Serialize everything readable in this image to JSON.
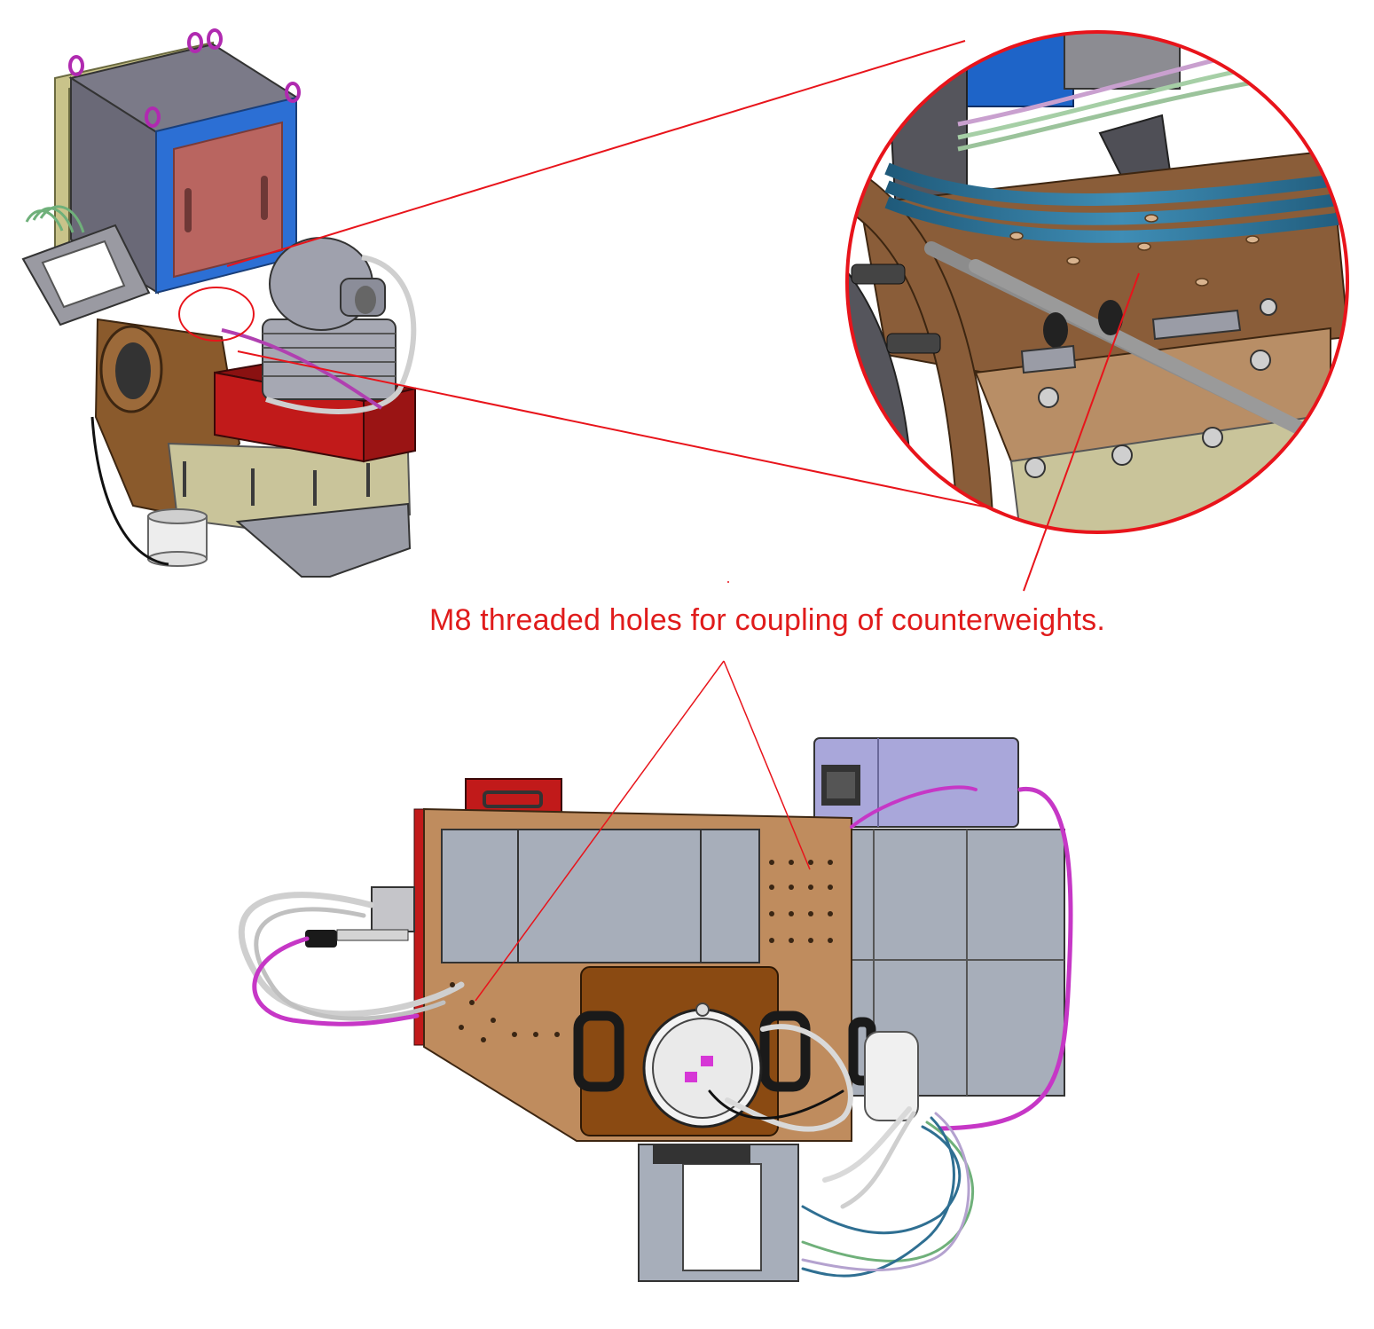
{
  "annotation": {
    "text": "M8 threaded holes for coupling of counterweights.",
    "color": "#e01b1b"
  },
  "colors": {
    "callout_red": "#e8141b",
    "bronze_plate": "#bf8c5e",
    "dark_bronze": "#8a4a12",
    "gray_panel": "#a7aeba",
    "enclosure_gray": "#6f6e7c",
    "blue_frame": "#2c6fd4",
    "salmon_panel": "#b96560",
    "red_box": "#c11a1a",
    "lavender_box": "#a9a7da",
    "olive_panel": "#c9c49a",
    "magenta_cable": "#c637c6",
    "teal_cable": "#2f6f92"
  },
  "views": {
    "isometric": "isometric-assembly-view",
    "zoom": "zoom-detail-view",
    "front": "front-assembly-view"
  }
}
